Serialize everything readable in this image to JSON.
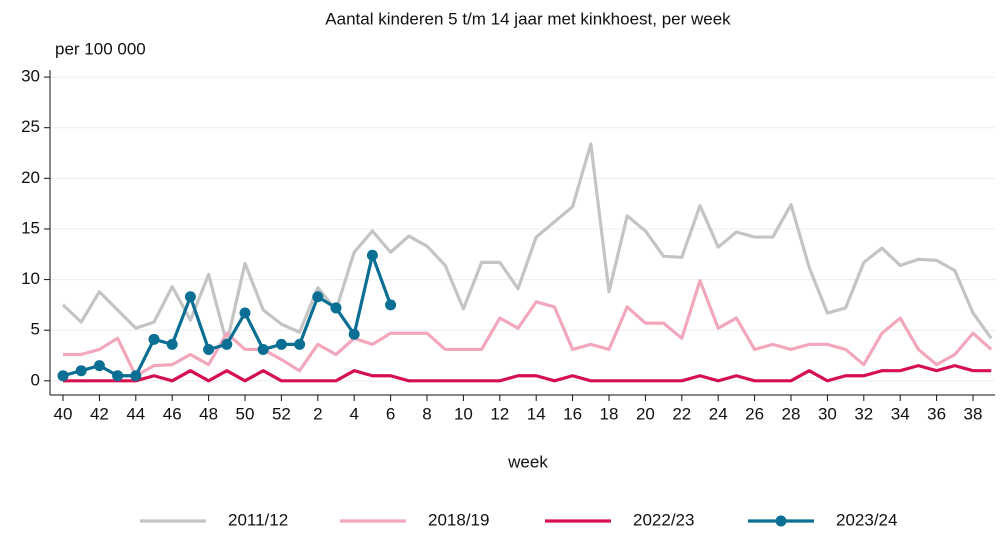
{
  "chart_data": {
    "type": "line",
    "title": "Aantal kinderen 5 t/m 14 jaar met kinkhoest, per week",
    "y_label": "per 100 000",
    "x_label": "week",
    "categories": [
      "40",
      null,
      "42",
      null,
      "44",
      null,
      "46",
      null,
      "48",
      null,
      "50",
      null,
      "52",
      null,
      "2",
      null,
      "4",
      null,
      "6",
      null,
      "8",
      null,
      "10",
      null,
      "12",
      null,
      "14",
      null,
      "16",
      null,
      "18",
      null,
      "20",
      null,
      "22",
      null,
      "24",
      null,
      "26",
      null,
      "28",
      null,
      "30",
      null,
      "32",
      null,
      "34",
      null,
      "36",
      null,
      "38",
      null
    ],
    "series": [
      {
        "name": "2011/12",
        "color": "#c4c4c4",
        "values": [
          7.5,
          5.8,
          8.8,
          7,
          5.2,
          5.8,
          9.3,
          6,
          10.5,
          3.7,
          11.6,
          7,
          5.6,
          4.8,
          9.2,
          7,
          12.7,
          14.8,
          12.7,
          14.3,
          13.3,
          11.4,
          7.1,
          11.7,
          11.7,
          9.1,
          14.2,
          15.7,
          17.2,
          23.4,
          8.8,
          16.3,
          14.8,
          12.3,
          12.2,
          17.3,
          13.2,
          14.7,
          14.2,
          14.2,
          17.4,
          11.2,
          6.7,
          7.2,
          11.7,
          13.1,
          11.4,
          12,
          11.9,
          10.9,
          6.7,
          4.2
        ]
      },
      {
        "name": "2018/19",
        "color": "#f2a7bb",
        "values": [
          2.6,
          2.6,
          3.1,
          4.2,
          0.5,
          1.5,
          1.6,
          2.6,
          1.6,
          4.7,
          3.1,
          3.1,
          2.1,
          1,
          3.6,
          2.6,
          4.2,
          3.6,
          4.7,
          4.7,
          4.7,
          3.1,
          3.1,
          3.1,
          6.2,
          5.2,
          7.8,
          7.3,
          3.1,
          3.6,
          3.1,
          7.3,
          5.7,
          5.7,
          4.2,
          9.9,
          5.2,
          6.2,
          3.1,
          3.6,
          3.1,
          3.6,
          3.6,
          3.1,
          1.6,
          4.7,
          6.2,
          3.1,
          1.6,
          2.6,
          4.7,
          3.1
        ]
      },
      {
        "name": "2022/23",
        "color": "#d6104f",
        "values": [
          0,
          0,
          0,
          0,
          0,
          0.5,
          0,
          1,
          0,
          1,
          0,
          1,
          0,
          0,
          0,
          0,
          1,
          0.5,
          0.5,
          0,
          0,
          0,
          0,
          0,
          0,
          0.5,
          0.5,
          0,
          0.5,
          0,
          0,
          0,
          0,
          0,
          0,
          0.5,
          0,
          0.5,
          0,
          0,
          0,
          1,
          0,
          0.5,
          0.5,
          1,
          1,
          1.5,
          1,
          1.5,
          1,
          1
        ]
      },
      {
        "name": "2023/24",
        "color": "#0b6f94",
        "markers": true,
        "values": [
          0.5,
          1,
          1.5,
          0.5,
          0.5,
          4.1,
          3.6,
          8.3,
          3.1,
          3.6,
          6.7,
          3.1,
          3.6,
          3.6,
          8.3,
          7.2,
          4.6,
          12.4,
          7.5,
          null,
          null,
          null,
          null,
          null,
          null,
          null,
          null,
          null,
          null,
          null,
          null,
          null,
          null,
          null,
          null,
          null,
          null,
          null,
          null,
          null,
          null,
          null,
          null,
          null,
          null,
          null,
          null,
          null,
          null,
          null,
          null,
          null
        ]
      }
    ],
    "ylim": [
      -1.4,
      30.7
    ],
    "yticks": [
      0,
      5,
      10,
      15,
      20,
      25,
      30
    ],
    "grid": true,
    "legend": "bottom"
  }
}
